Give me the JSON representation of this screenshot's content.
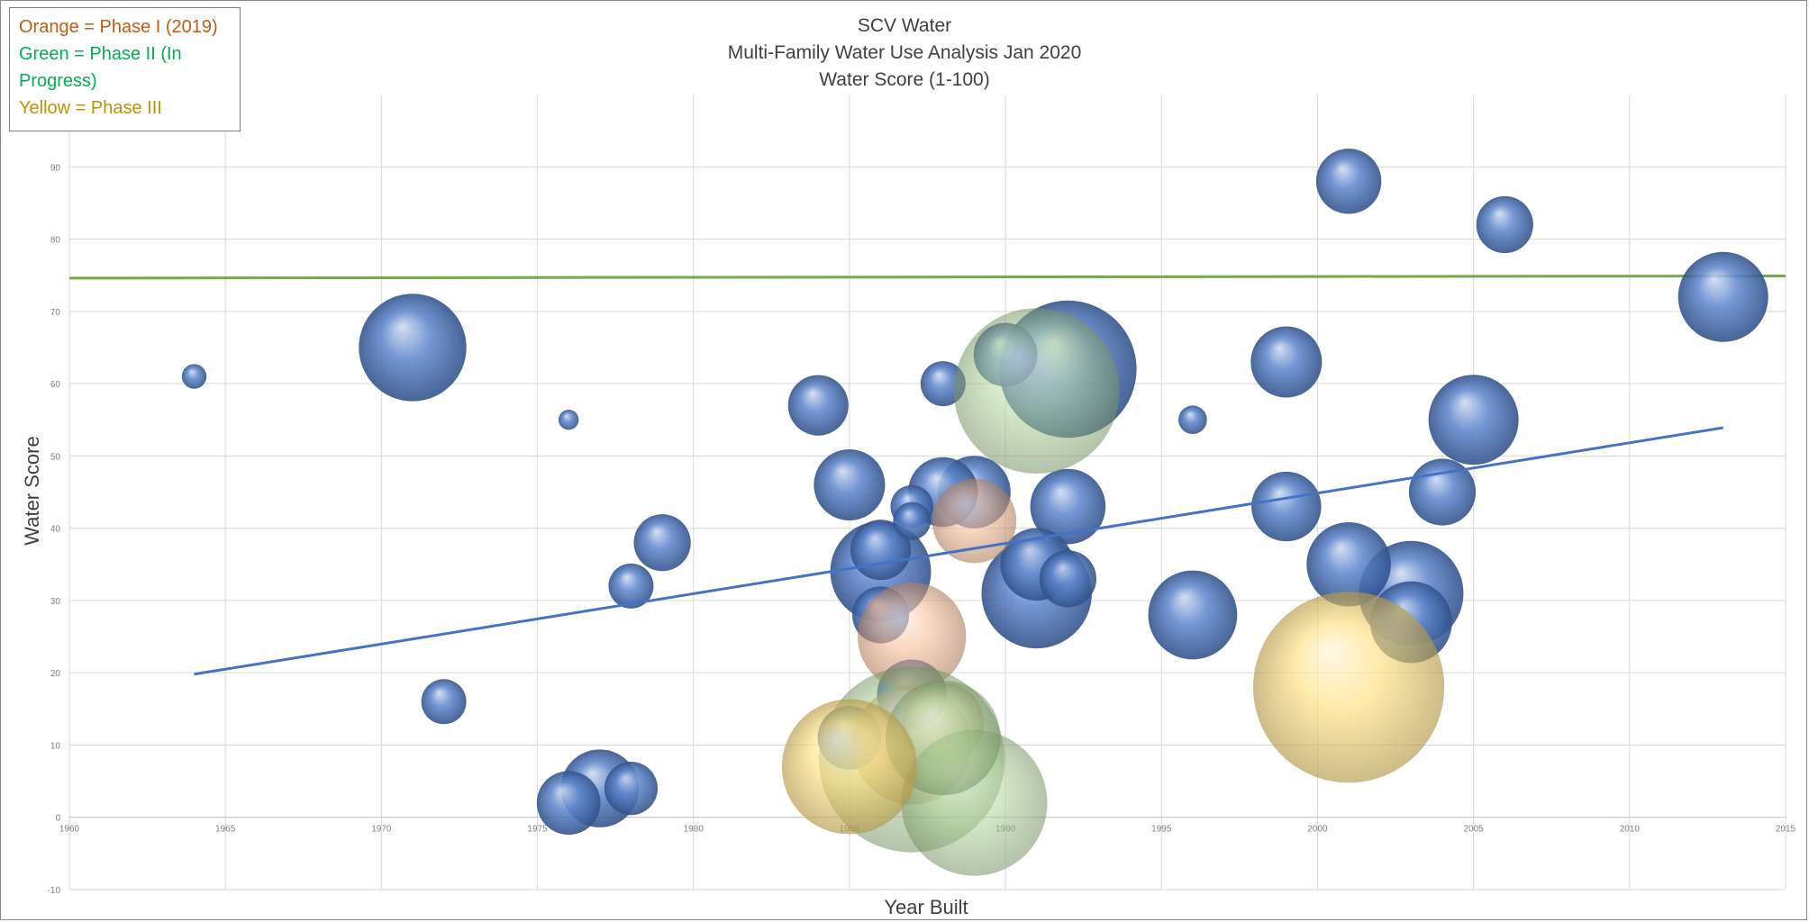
{
  "chart_data": {
    "type": "bubble",
    "title_lines": [
      "SCV Water",
      "Multi-Family Water Use Analysis Jan 2020",
      "Water Score (1-100)"
    ],
    "xlabel": "Year Built",
    "ylabel": "Water Score",
    "xlim": [
      1960,
      2015
    ],
    "ylim": [
      -10,
      100
    ],
    "xticks": [
      1960,
      1965,
      1970,
      1975,
      1980,
      1985,
      1990,
      1995,
      2000,
      2005,
      2010,
      2015
    ],
    "yticks": [
      -10,
      0,
      10,
      20,
      30,
      40,
      50,
      60,
      70,
      80,
      90
    ],
    "grid": true,
    "legend_placement": "top-left",
    "legend_entries": [
      {
        "text": "Orange = Phase I (2019)",
        "color": "#c55a11"
      },
      {
        "text": "Green = Phase II (In Progress)",
        "color": "#00b050"
      },
      {
        "text": "Yellow = Phase III",
        "color": "#bf9000"
      }
    ],
    "colors": {
      "blue": "#4472c4",
      "orange": "#f4b183",
      "green": "#a9d18e",
      "yellow": "#ffd966",
      "target_line": "#70ad47",
      "trend_line": "#4472c4"
    },
    "target_line": {
      "y_start": 74.6,
      "y_end": 74.9
    },
    "trend_line": {
      "x": [
        1964,
        2013
      ],
      "y": [
        19.8,
        53.9
      ]
    },
    "bubbles": [
      {
        "x": 1964,
        "y": 61,
        "size": 0.3,
        "phase": "blue"
      },
      {
        "x": 1971,
        "y": 65,
        "size": 5.7,
        "phase": "blue"
      },
      {
        "x": 1972,
        "y": 16,
        "size": 1.0,
        "phase": "blue"
      },
      {
        "x": 1976,
        "y": 55,
        "size": 0.2,
        "phase": "blue"
      },
      {
        "x": 1976,
        "y": 2,
        "size": 2.0,
        "phase": "blue"
      },
      {
        "x": 1977,
        "y": 4,
        "size": 3.0,
        "phase": "blue"
      },
      {
        "x": 1978,
        "y": 4,
        "size": 1.4,
        "phase": "blue"
      },
      {
        "x": 1978,
        "y": 32,
        "size": 1.0,
        "phase": "blue"
      },
      {
        "x": 1979,
        "y": 38,
        "size": 1.6,
        "phase": "blue"
      },
      {
        "x": 1984,
        "y": 57,
        "size": 1.8,
        "phase": "blue"
      },
      {
        "x": 1985,
        "y": 46,
        "size": 2.5,
        "phase": "blue"
      },
      {
        "x": 1985,
        "y": 11,
        "size": 2.0,
        "phase": "blue"
      },
      {
        "x": 1986,
        "y": 34,
        "size": 5.0,
        "phase": "blue"
      },
      {
        "x": 1986,
        "y": 37,
        "size": 1.8,
        "phase": "blue"
      },
      {
        "x": 1986,
        "y": 28,
        "size": 1.6,
        "phase": "blue"
      },
      {
        "x": 1987,
        "y": 43,
        "size": 0.9,
        "phase": "blue"
      },
      {
        "x": 1987,
        "y": 41,
        "size": 0.7,
        "phase": "blue"
      },
      {
        "x": 1987,
        "y": 17,
        "size": 2.4,
        "phase": "blue"
      },
      {
        "x": 1988,
        "y": 60,
        "size": 1.0,
        "phase": "blue"
      },
      {
        "x": 1988,
        "y": 45,
        "size": 2.4,
        "phase": "blue"
      },
      {
        "x": 1989,
        "y": 45,
        "size": 2.6,
        "phase": "blue"
      },
      {
        "x": 1990,
        "y": 64,
        "size": 2.0,
        "phase": "blue"
      },
      {
        "x": 1991,
        "y": 31,
        "size": 6.0,
        "phase": "blue"
      },
      {
        "x": 1991,
        "y": 35,
        "size": 2.6,
        "phase": "blue"
      },
      {
        "x": 1992,
        "y": 43,
        "size": 2.8,
        "phase": "blue"
      },
      {
        "x": 1992,
        "y": 33,
        "size": 1.6,
        "phase": "blue"
      },
      {
        "x": 1992,
        "y": 62,
        "size": 9.3,
        "phase": "blue"
      },
      {
        "x": 1996,
        "y": 55,
        "size": 0.4,
        "phase": "blue"
      },
      {
        "x": 1996,
        "y": 28,
        "size": 3.9,
        "phase": "blue"
      },
      {
        "x": 1999,
        "y": 63,
        "size": 2.5,
        "phase": "blue"
      },
      {
        "x": 1999,
        "y": 43,
        "size": 2.4,
        "phase": "blue"
      },
      {
        "x": 2001,
        "y": 88,
        "size": 2.1,
        "phase": "blue"
      },
      {
        "x": 2001,
        "y": 35,
        "size": 3.5,
        "phase": "blue"
      },
      {
        "x": 2003,
        "y": 31,
        "size": 5.4,
        "phase": "blue"
      },
      {
        "x": 2003,
        "y": 27,
        "size": 3.3,
        "phase": "blue"
      },
      {
        "x": 2004,
        "y": 45,
        "size": 2.2,
        "phase": "blue"
      },
      {
        "x": 2005,
        "y": 55,
        "size": 4.0,
        "phase": "blue"
      },
      {
        "x": 2006,
        "y": 82,
        "size": 1.6,
        "phase": "blue"
      },
      {
        "x": 2013,
        "y": 72,
        "size": 4.0,
        "phase": "blue"
      },
      {
        "x": 1989,
        "y": 41,
        "size": 3.5,
        "phase": "orange"
      },
      {
        "x": 1987,
        "y": 25,
        "size": 5.8,
        "phase": "orange"
      },
      {
        "x": 1987,
        "y": 10,
        "size": 7.0,
        "phase": "orange"
      },
      {
        "x": 1988,
        "y": 13,
        "size": 3.3,
        "phase": "orange"
      },
      {
        "x": 1991,
        "y": 59,
        "size": 13.5,
        "phase": "green"
      },
      {
        "x": 1987,
        "y": 8,
        "size": 17.0,
        "phase": "green"
      },
      {
        "x": 1989,
        "y": 2,
        "size": 10.5,
        "phase": "green"
      },
      {
        "x": 1988,
        "y": 11,
        "size": 6.5,
        "phase": "green"
      },
      {
        "x": 2001,
        "y": 18,
        "size": 18.0,
        "phase": "yellow"
      },
      {
        "x": 1985,
        "y": 7,
        "size": 9.0,
        "phase": "yellow"
      }
    ]
  }
}
